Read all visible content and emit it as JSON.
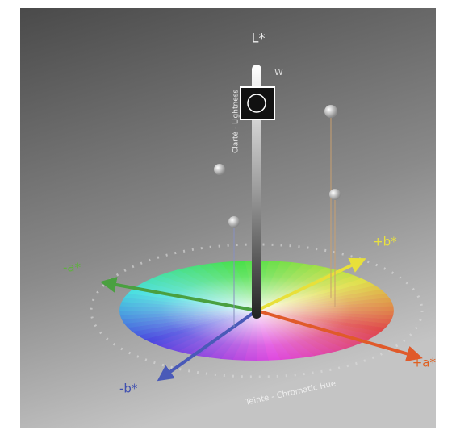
{
  "labels": {
    "l_axis": "L*",
    "white": "W",
    "plus_a": "+a*",
    "minus_b": "-b*",
    "plus_b": "+b*",
    "minus_a": "-a*",
    "lightness": "Clarté - Lightness",
    "hue": "Teinte - Chromatic Hue"
  }
}
